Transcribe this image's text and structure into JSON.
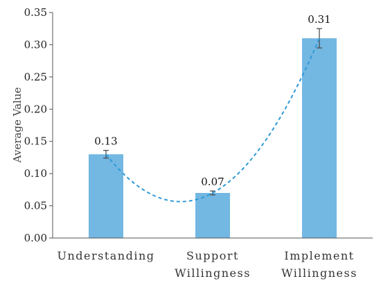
{
  "chart_data": {
    "type": "bar",
    "title": "",
    "xlabel": "",
    "ylabel": "Average Value",
    "categories": [
      [
        "Understanding"
      ],
      [
        "Support",
        "Willingness"
      ],
      [
        "Implement",
        "Willingness"
      ]
    ],
    "values": [
      0.13,
      0.07,
      0.31
    ],
    "value_labels": [
      "0.13",
      "0.07",
      "0.31"
    ],
    "error": [
      0.006,
      0.003,
      0.015
    ],
    "ylim": [
      0,
      0.35
    ],
    "yticks": [
      "0.00",
      "0.05",
      "0.10",
      "0.15",
      "0.20",
      "0.25",
      "0.30",
      "0.35"
    ],
    "trendline": {
      "style": "dashed",
      "shape": "polynomial"
    },
    "grid": false,
    "legend": "none",
    "colors": {
      "bar": "#73b7e3",
      "trendline": "#2e9ad6",
      "axis": "#555555",
      "error": "#444444"
    }
  }
}
